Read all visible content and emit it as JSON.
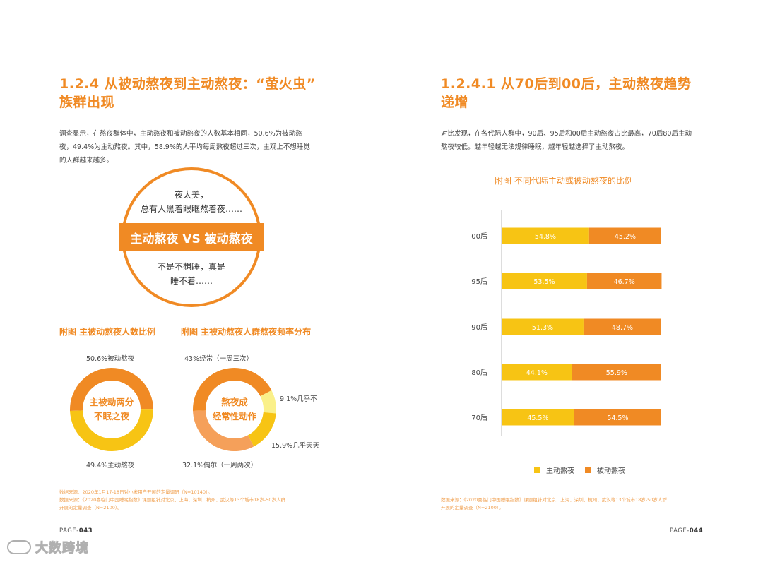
{
  "left": {
    "title_line1": "1.2.4  从被动熬夜到主动熬夜：“萤火虫”",
    "title_line2": "族群出现",
    "body_line1": "调查显示，在熬夜群体中，主动熬夜和被动熬夜的人数基本相同，50.6%为被动熬",
    "body_line2": "夜，49.4%为主动熬夜。其中，58.9%的人平均每周熬夜超过三次，主观上不想睡觉",
    "body_line3": "的人群越来越多。",
    "circle": {
      "top_line1": "夜太美，",
      "top_line2": "总有人黑着眼眶熬着夜……",
      "band": "主动熬夜 VS 被动熬夜",
      "bottom_line1": "不是不想睡，真是",
      "bottom_line2": "睡不着……"
    },
    "fig1_title": "附图  主被动熬夜人数比例",
    "fig2_title": "附图  主被动熬夜人群熬夜频率分布",
    "donut1": {
      "center_line1": "主被动两分",
      "center_line2": "不眠之夜",
      "label_top": "50.6%被动熬夜",
      "label_bottom": "49.4%主动熬夜",
      "segments": [
        {
          "name": "被动熬夜",
          "value": 50.6,
          "color": "#f08a24"
        },
        {
          "name": "主动熬夜",
          "value": 49.4,
          "color": "#f7c414"
        }
      ]
    },
    "donut2": {
      "center_line1": "熬夜成",
      "center_line2": "经常性动作",
      "label_top": "43%经常（一周三次）",
      "label_right1": "9.1%几乎不",
      "label_right2": "15.9%几乎天天",
      "label_bottom": "32.1%偶尔（一周两次）",
      "segments": [
        {
          "name": "经常（一周三次）",
          "value": 43,
          "color": "#f08a24"
        },
        {
          "name": "几乎不",
          "value": 9.1,
          "color": "#faf08a"
        },
        {
          "name": "几乎天天",
          "value": 15.9,
          "color": "#f7c414"
        },
        {
          "name": "偶尔（一周两次）",
          "value": 32.1,
          "color": "#f5a05a"
        }
      ]
    },
    "source_line1": "数据来源：2020年1月17-18日对小米用户开展的定量调研（N=10140）。",
    "source_line2": "数据来源：《2020喜临门中国睡眠指数》课题组针对北京、上海、深圳、杭州、武汉等13个城市18岁-50岁人群",
    "source_line3": "开展的定量调查（N=2100）。",
    "page_prefix": "PAGE-",
    "page_number": "043"
  },
  "right": {
    "title_line1": "1.2.4.1  从70后到00后，主动熬夜趋势",
    "title_line2": "递增",
    "body_line1": "对比发现，在各代际人群中，90后、95后和00后主动熬夜占比最高，70后80后主动",
    "body_line2": "熬夜较低。越年轻越无法规律睡眠，越年轻越选择了主动熬夜。",
    "fig_title": "附图  不同代际主动或被动熬夜的比例",
    "legend_active": "主动熬夜",
    "legend_passive": "被动熬夜",
    "source_line1": "数据来源：《2020喜临门中国睡眠指数》课题组针对北京、上海、深圳、杭州、武汉等13个城市18岁-50岁人群",
    "source_line2": "开展的定量调查（N=2100）。",
    "page_prefix": "PAGE-",
    "page_number": "044"
  },
  "colors": {
    "accent": "#f08a24",
    "active": "#f7c414",
    "passive": "#f08a24"
  },
  "chart_data": {
    "type": "bar",
    "orientation": "horizontal-stacked",
    "categories": [
      "00后",
      "95后",
      "90后",
      "80后",
      "70后"
    ],
    "series": [
      {
        "name": "主动熬夜",
        "values": [
          54.8,
          53.5,
          51.3,
          44.1,
          45.5
        ],
        "labels": [
          "54.8%",
          "53.5%",
          "51.3%",
          "44.1%",
          "45.5%"
        ]
      },
      {
        "name": "被动熬夜",
        "values": [
          45.2,
          46.7,
          48.7,
          55.9,
          54.5
        ],
        "labels": [
          "45.2%",
          "46.7%",
          "48.7%",
          "55.9%",
          "54.5%"
        ]
      }
    ],
    "title": "附图  不同代际主动或被动熬夜的比例",
    "xlim": [
      0,
      100
    ],
    "legend_position": "bottom"
  },
  "watermark": "大数跨境"
}
